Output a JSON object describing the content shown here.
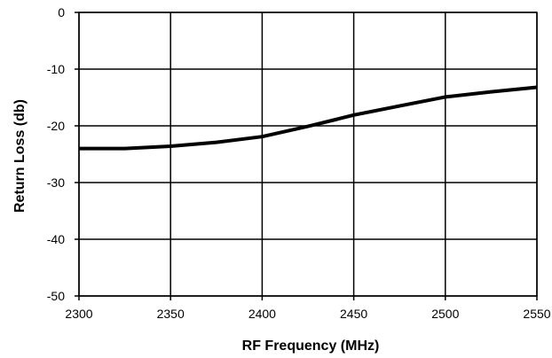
{
  "chart_data": {
    "type": "line",
    "title": "",
    "xlabel": "RF Frequency (MHz)",
    "ylabel": "Return Loss (db)",
    "xlim": [
      2300,
      2550
    ],
    "ylim": [
      -50,
      0
    ],
    "xticks": [
      2300,
      2350,
      2400,
      2450,
      2500,
      2550
    ],
    "yticks": [
      0,
      -10,
      -20,
      -30,
      -40,
      -50
    ],
    "grid": true,
    "legend": "none",
    "line_color": "#000000",
    "series": [
      {
        "x": [
          2300,
          2325,
          2350,
          2375,
          2400,
          2425,
          2440,
          2450,
          2475,
          2500,
          2525,
          2550
        ],
        "values": [
          -24.0,
          -24.0,
          -23.6,
          -22.9,
          -21.9,
          -20.1,
          -18.9,
          -18.1,
          -16.5,
          -14.9,
          -14.0,
          -13.2
        ]
      }
    ]
  }
}
